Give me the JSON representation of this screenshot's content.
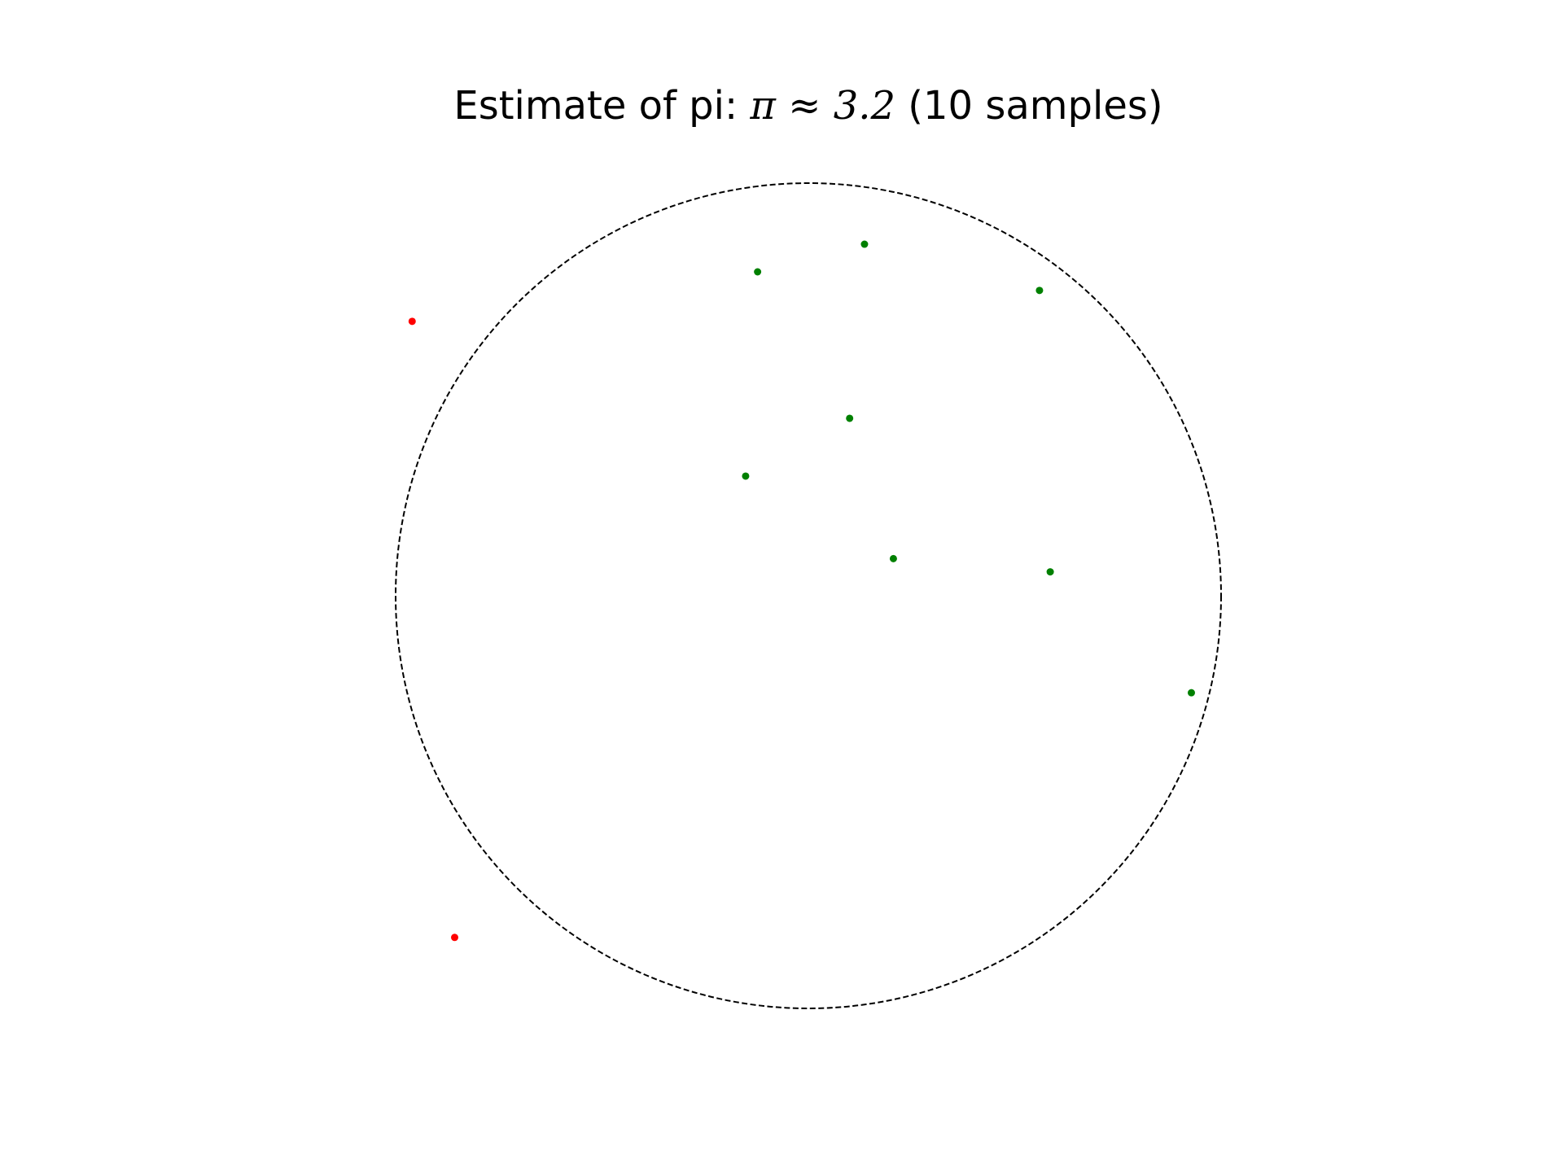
{
  "chart_data": {
    "type": "scatter",
    "title": {
      "prefix": "Estimate of pi: ",
      "math": "π ≈ 3.2",
      "suffix": " (10 samples)"
    },
    "xlim": [
      -1.0,
      1.0
    ],
    "ylim": [
      -1.0,
      1.0
    ],
    "aspect": "equal",
    "axes_visible": false,
    "grid": false,
    "circle": {
      "center": [
        0,
        0
      ],
      "radius": 1.0,
      "style": "dashed",
      "color": "#000000"
    },
    "inside_color": "#008000",
    "outside_color": "#ff0000",
    "points": [
      {
        "x": 0.136,
        "y": 0.852,
        "inside": true
      },
      {
        "x": -0.123,
        "y": 0.785,
        "inside": true
      },
      {
        "x": 0.56,
        "y": 0.74,
        "inside": true
      },
      {
        "x": 0.1,
        "y": 0.43,
        "inside": true
      },
      {
        "x": -0.152,
        "y": 0.29,
        "inside": true
      },
      {
        "x": 0.206,
        "y": 0.09,
        "inside": true
      },
      {
        "x": 0.586,
        "y": 0.058,
        "inside": true
      },
      {
        "x": 0.928,
        "y": -0.235,
        "inside": true
      },
      {
        "x": -0.96,
        "y": 0.665,
        "inside": false
      },
      {
        "x": -0.857,
        "y": -0.828,
        "inside": false
      }
    ]
  }
}
